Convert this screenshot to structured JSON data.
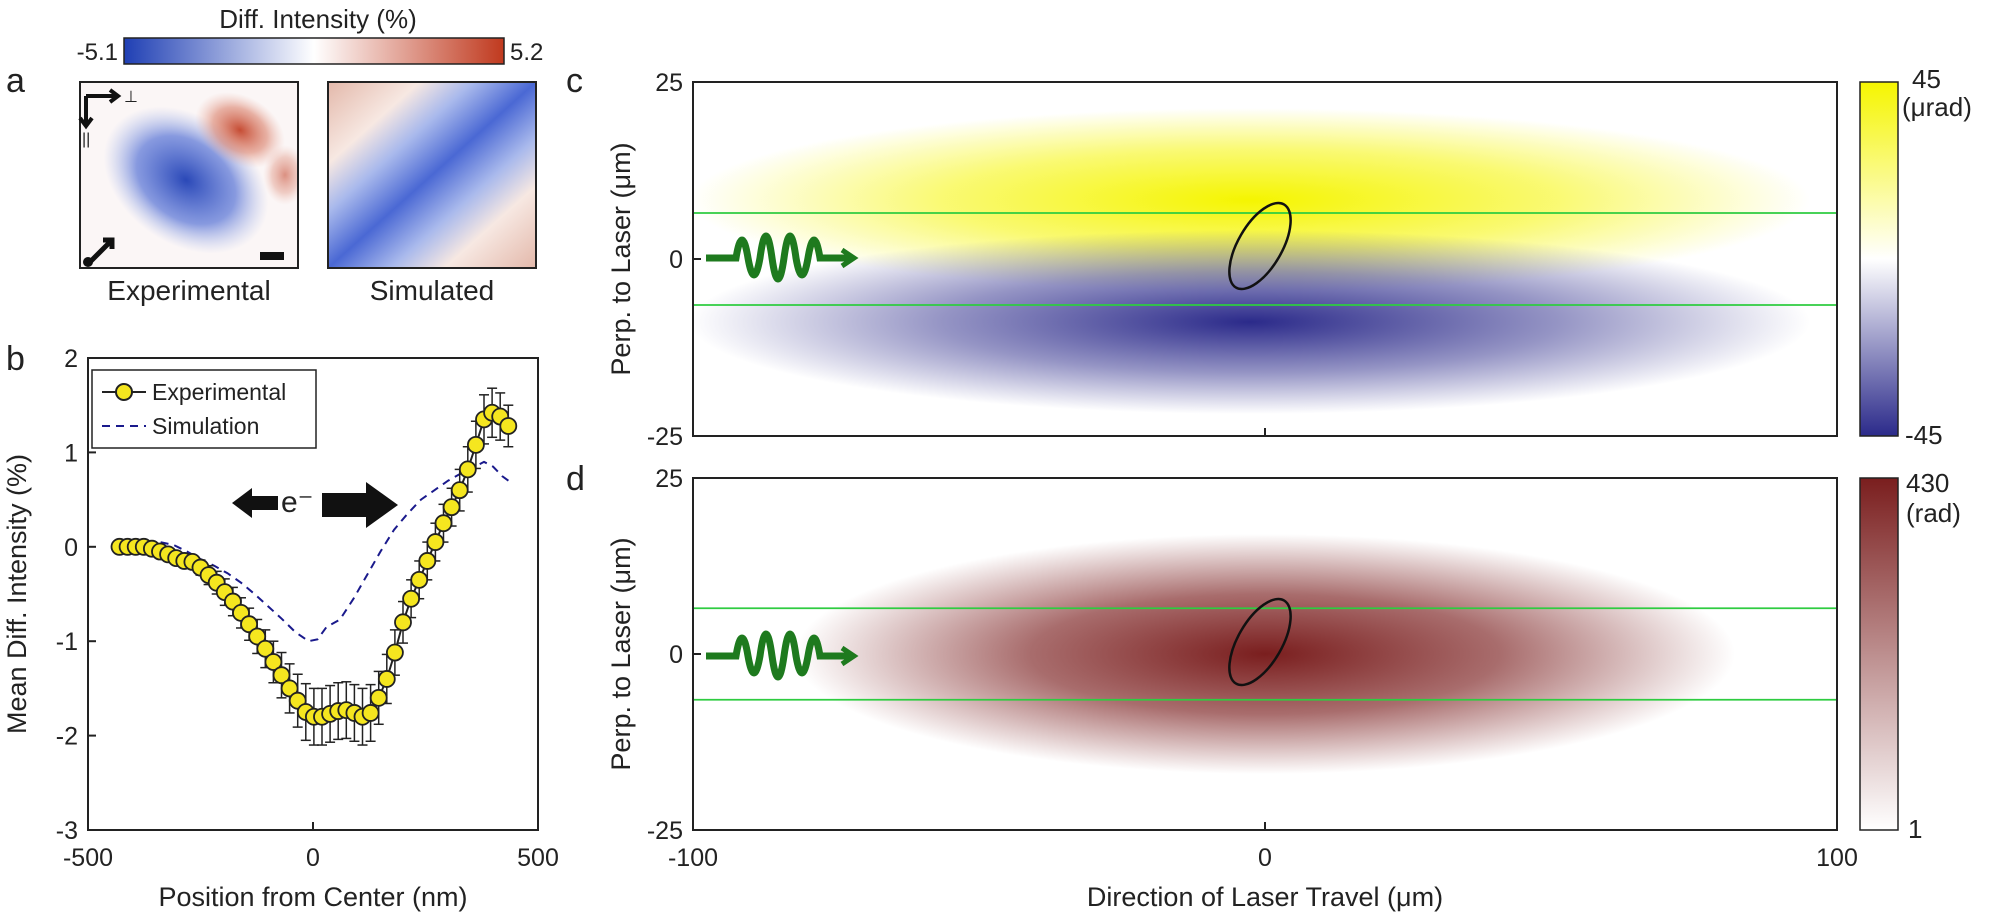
{
  "panel_labels": {
    "a": "a",
    "b": "b",
    "c": "c",
    "d": "d"
  },
  "colormap_a": {
    "title": "Diff. Intensity (%)",
    "min_label": "-5.1",
    "max_label": "5.2",
    "low_color": "#1f3fb4",
    "mid_color": "#ffffff",
    "high_color": "#c0391e"
  },
  "images_a": {
    "left_caption": "Experimental",
    "right_caption": "Simulated",
    "perp_symbol": "⊥",
    "parallel_symbol": "||"
  },
  "chart_data": [
    {
      "type": "line",
      "panel": "b",
      "xlabel": "Position from Center (nm)",
      "ylabel": "Mean Diff. Intensity (%)",
      "xlim": [
        -500,
        500
      ],
      "ylim": [
        -3,
        2
      ],
      "xticks": [
        "-500",
        "0",
        "500"
      ],
      "yticks": [
        "-3",
        "-2",
        "-1",
        "0",
        "1",
        "2"
      ],
      "legend_position": "top-left",
      "annotation": "e⁻",
      "series": [
        {
          "name": "Experimental",
          "marker": "circle",
          "color": "#f5e61f",
          "x": [
            -430,
            -412,
            -394,
            -376,
            -358,
            -340,
            -322,
            -304,
            -286,
            -268,
            -250,
            -232,
            -214,
            -196,
            -178,
            -160,
            -142,
            -124,
            -106,
            -88,
            -70,
            -52,
            -34,
            -16,
            2,
            20,
            38,
            56,
            74,
            92,
            110,
            128,
            146,
            164,
            182,
            200,
            218,
            236,
            254,
            272,
            290,
            308,
            326,
            344,
            362,
            380,
            398,
            416,
            434
          ],
          "y": [
            0,
            0,
            0,
            0,
            -0.02,
            -0.05,
            -0.08,
            -0.12,
            -0.15,
            -0.16,
            -0.22,
            -0.3,
            -0.38,
            -0.48,
            -0.58,
            -0.7,
            -0.82,
            -0.95,
            -1.08,
            -1.22,
            -1.36,
            -1.5,
            -1.63,
            -1.75,
            -1.8,
            -1.8,
            -1.77,
            -1.74,
            -1.73,
            -1.76,
            -1.8,
            -1.76,
            -1.6,
            -1.4,
            -1.12,
            -0.8,
            -0.55,
            -0.35,
            -0.15,
            0.05,
            0.25,
            0.42,
            0.6,
            0.82,
            1.08,
            1.35,
            1.42,
            1.38,
            1.28
          ],
          "error": [
            0.02,
            0.02,
            0.02,
            0.02,
            0.03,
            0.03,
            0.04,
            0.05,
            0.06,
            0.06,
            0.08,
            0.1,
            0.12,
            0.14,
            0.15,
            0.16,
            0.17,
            0.18,
            0.2,
            0.22,
            0.24,
            0.26,
            0.28,
            0.3,
            0.3,
            0.3,
            0.3,
            0.3,
            0.3,
            0.3,
            0.3,
            0.3,
            0.28,
            0.26,
            0.24,
            0.22,
            0.2,
            0.2,
            0.2,
            0.2,
            0.2,
            0.2,
            0.22,
            0.24,
            0.25,
            0.26,
            0.26,
            0.25,
            0.22
          ]
        },
        {
          "name": "Simulation",
          "style": "dashed",
          "color": "#1a1a8c",
          "x": [
            -430,
            -400,
            -370,
            -340,
            -310,
            -280,
            -250,
            -220,
            -190,
            -160,
            -130,
            -100,
            -70,
            -40,
            -10,
            10,
            30,
            60,
            90,
            120,
            150,
            180,
            210,
            240,
            270,
            300,
            330,
            360,
            380,
            400,
            420,
            440
          ],
          "y": [
            0,
            0.05,
            0.06,
            0.05,
            0.02,
            -0.05,
            -0.13,
            -0.2,
            -0.28,
            -0.38,
            -0.5,
            -0.63,
            -0.76,
            -0.9,
            -1.0,
            -0.98,
            -0.85,
            -0.77,
            -0.55,
            -0.3,
            -0.05,
            0.18,
            0.35,
            0.5,
            0.6,
            0.7,
            0.78,
            0.85,
            0.9,
            0.85,
            0.75,
            0.68
          ]
        }
      ]
    },
    {
      "type": "heatmap",
      "panel": "c",
      "ylabel": "Perp. to Laser (μm)",
      "xlim": [
        -100,
        100
      ],
      "ylim": [
        -25,
        25
      ],
      "yticks": [
        "25",
        "0",
        "-25"
      ],
      "colorbar": {
        "max": "45",
        "unit": "(μrad)",
        "min": "-45",
        "high_color": "#f5f500",
        "mid_color": "#ffffff",
        "low_color": "#2b2a8a"
      },
      "laser_bounds_y": [
        6.5,
        -6.5
      ],
      "ellipse_center": [
        -2,
        1
      ],
      "line_color": "#2ecc40"
    },
    {
      "type": "heatmap",
      "panel": "d",
      "xlabel": "Direction of Laser Travel (μm)",
      "ylabel": "Perp. to Laser (μm)",
      "xlim": [
        -100,
        100
      ],
      "ylim": [
        -25,
        25
      ],
      "xticks": [
        "-100",
        "0",
        "100"
      ],
      "yticks": [
        "25",
        "0",
        "-25"
      ],
      "colorbar": {
        "max": "430",
        "unit": "(rad)",
        "min": "1",
        "high_color": "#7a1e1e",
        "low_color": "#ffffff"
      },
      "laser_bounds_y": [
        6.5,
        -6.5
      ],
      "ellipse_center": [
        -2,
        1
      ],
      "line_color": "#2ecc40"
    }
  ]
}
